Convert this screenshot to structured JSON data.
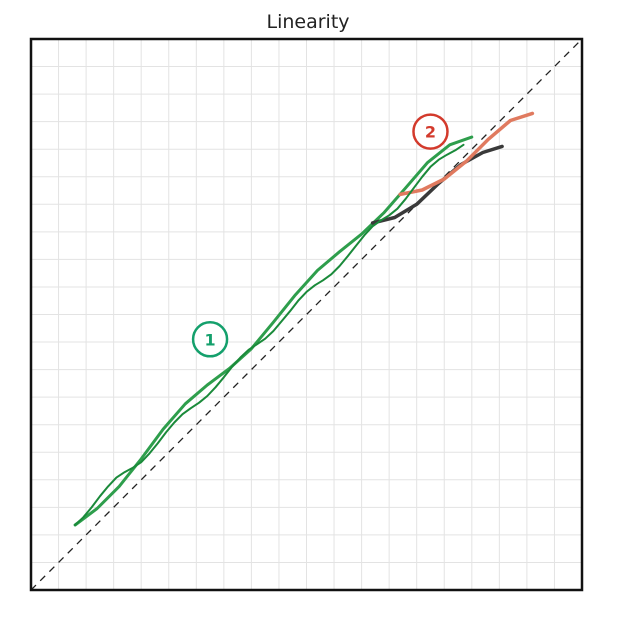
{
  "chart_data": {
    "type": "line",
    "title": "Linearity",
    "xlabel": "",
    "ylabel": "",
    "xlim": [
      0,
      1
    ],
    "ylim": [
      0,
      1
    ],
    "grid": true,
    "reference_line": {
      "style": "dashed",
      "color": "#222222",
      "from": [
        0,
        0
      ],
      "to": [
        1,
        1
      ]
    },
    "series": [
      {
        "values": [
          [
            0.08,
            0.118
          ],
          [
            0.12,
            0.148
          ],
          [
            0.16,
            0.188
          ],
          [
            0.2,
            0.238
          ],
          [
            0.24,
            0.292
          ],
          [
            0.28,
            0.338
          ],
          [
            0.32,
            0.372
          ],
          [
            0.36,
            0.402
          ],
          [
            0.4,
            0.438
          ],
          [
            0.44,
            0.486
          ],
          [
            0.48,
            0.536
          ],
          [
            0.52,
            0.58
          ],
          [
            0.56,
            0.614
          ],
          [
            0.6,
            0.646
          ],
          [
            0.64,
            0.684
          ],
          [
            0.68,
            0.73
          ],
          [
            0.72,
            0.776
          ],
          [
            0.76,
            0.808
          ],
          [
            0.8,
            0.822
          ]
        ],
        "color": "#2e9e4c",
        "width": 3
      },
      {
        "values": [
          [
            0.62,
            0.666
          ],
          [
            0.66,
            0.676
          ],
          [
            0.7,
            0.7
          ],
          [
            0.74,
            0.738
          ],
          [
            0.78,
            0.772
          ],
          [
            0.82,
            0.794
          ],
          [
            0.855,
            0.805
          ]
        ],
        "color": "#3a3a3a",
        "width": 3.5
      },
      {
        "values": [
          [
            0.67,
            0.718
          ],
          [
            0.71,
            0.726
          ],
          [
            0.75,
            0.746
          ],
          [
            0.79,
            0.778
          ],
          [
            0.83,
            0.818
          ],
          [
            0.87,
            0.852
          ],
          [
            0.91,
            0.865
          ]
        ],
        "color": "#e07a5f",
        "width": 3.5
      },
      {
        "values": [
          [
            0.08,
            0.118
          ],
          [
            0.095,
            0.132
          ],
          [
            0.11,
            0.15
          ],
          [
            0.125,
            0.17
          ],
          [
            0.14,
            0.188
          ],
          [
            0.155,
            0.204
          ],
          [
            0.17,
            0.214
          ],
          [
            0.185,
            0.222
          ],
          [
            0.2,
            0.232
          ],
          [
            0.215,
            0.248
          ],
          [
            0.23,
            0.266
          ],
          [
            0.245,
            0.286
          ],
          [
            0.26,
            0.304
          ],
          [
            0.275,
            0.319
          ],
          [
            0.29,
            0.33
          ],
          [
            0.305,
            0.34
          ],
          [
            0.32,
            0.352
          ],
          [
            0.335,
            0.368
          ],
          [
            0.35,
            0.386
          ],
          [
            0.365,
            0.405
          ],
          [
            0.38,
            0.422
          ],
          [
            0.395,
            0.436
          ],
          [
            0.41,
            0.446
          ],
          [
            0.425,
            0.456
          ],
          [
            0.44,
            0.47
          ],
          [
            0.455,
            0.488
          ],
          [
            0.47,
            0.506
          ],
          [
            0.485,
            0.525
          ],
          [
            0.5,
            0.541
          ],
          [
            0.515,
            0.553
          ],
          [
            0.53,
            0.562
          ],
          [
            0.545,
            0.573
          ],
          [
            0.56,
            0.588
          ],
          [
            0.575,
            0.606
          ],
          [
            0.59,
            0.625
          ],
          [
            0.605,
            0.644
          ],
          [
            0.62,
            0.66
          ],
          [
            0.635,
            0.671
          ],
          [
            0.65,
            0.68
          ],
          [
            0.665,
            0.692
          ],
          [
            0.68,
            0.71
          ],
          [
            0.695,
            0.73
          ],
          [
            0.71,
            0.75
          ],
          [
            0.725,
            0.768
          ],
          [
            0.74,
            0.781
          ],
          [
            0.755,
            0.79
          ],
          [
            0.77,
            0.798
          ],
          [
            0.785,
            0.808
          ]
        ],
        "color": "#1a8a3a",
        "width": 2
      }
    ],
    "annotations": [
      {
        "text": "1",
        "x": 0.325,
        "y": 0.455,
        "color": "#14a06c"
      },
      {
        "text": "2",
        "x": 0.725,
        "y": 0.832,
        "color": "#d33a2c"
      }
    ]
  }
}
